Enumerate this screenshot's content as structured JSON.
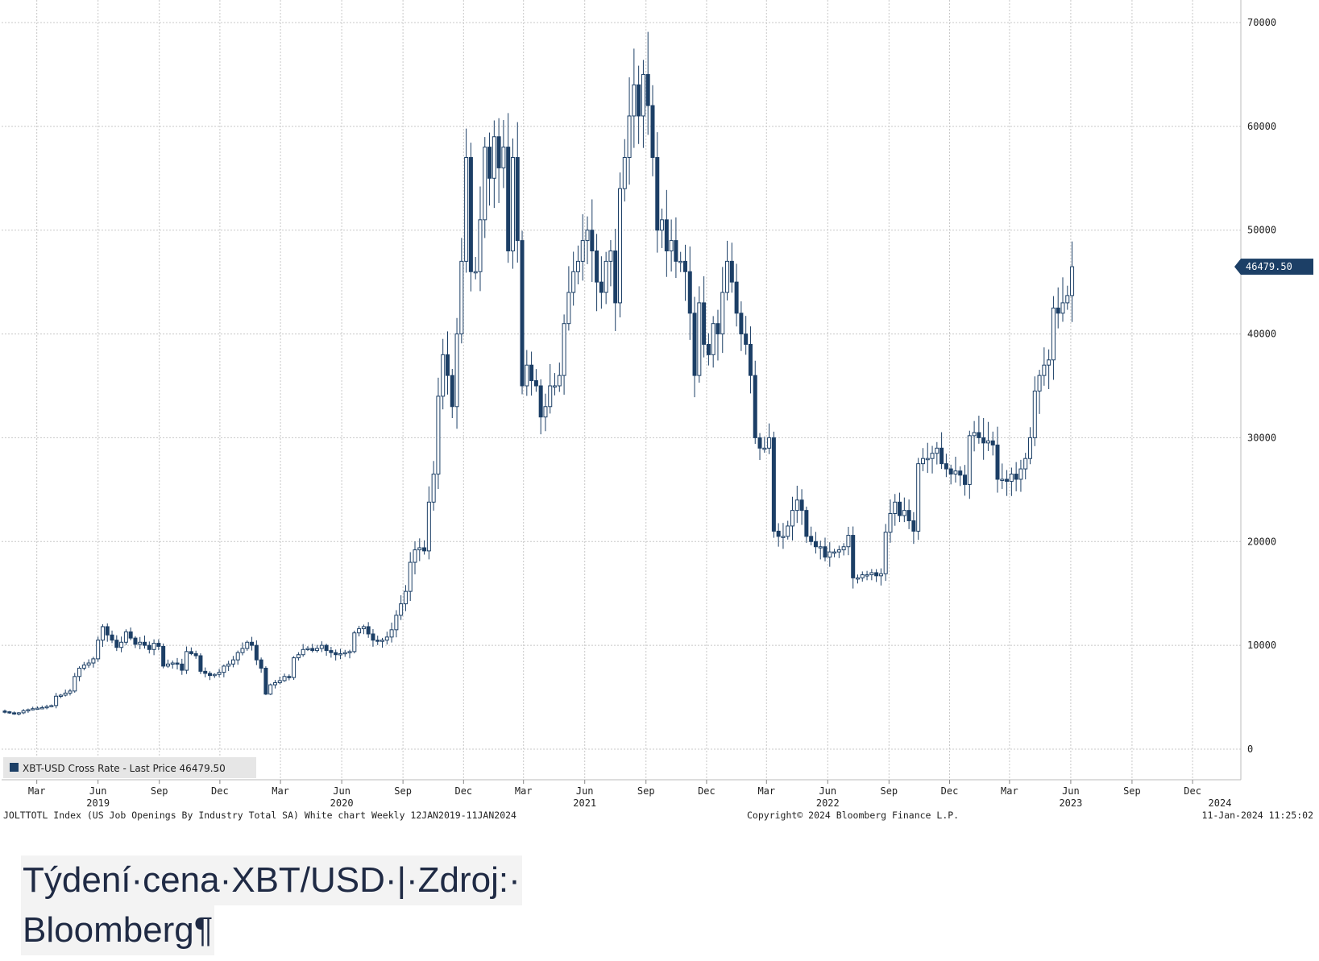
{
  "chart_data": {
    "type": "candlestick",
    "y_ticks": [
      "0",
      "10000",
      "20000",
      "30000",
      "40000",
      "50000",
      "60000",
      "70000"
    ],
    "ylim": [
      0,
      70000
    ],
    "grid": true,
    "x_month_ticks": [
      {
        "label": "Mar",
        "date": "2019-03-01"
      },
      {
        "label": "Jun",
        "date": "2019-06-01"
      },
      {
        "label": "Sep",
        "date": "2019-09-01"
      },
      {
        "label": "Dec",
        "date": "2019-12-01"
      },
      {
        "label": "Mar",
        "date": "2020-03-01"
      },
      {
        "label": "Jun",
        "date": "2020-06-01"
      },
      {
        "label": "Sep",
        "date": "2020-09-01"
      },
      {
        "label": "Dec",
        "date": "2020-12-01"
      },
      {
        "label": "Mar",
        "date": "2021-03-01"
      },
      {
        "label": "Jun",
        "date": "2021-06-01"
      },
      {
        "label": "Sep",
        "date": "2021-09-01"
      },
      {
        "label": "Dec",
        "date": "2021-12-01"
      },
      {
        "label": "Mar",
        "date": "2022-03-01"
      },
      {
        "label": "Jun",
        "date": "2022-06-01"
      },
      {
        "label": "Sep",
        "date": "2022-09-01"
      },
      {
        "label": "Dec",
        "date": "2022-12-01"
      },
      {
        "label": "Mar",
        "date": "2023-03-01"
      },
      {
        "label": "Jun",
        "date": "2023-06-01"
      },
      {
        "label": "Sep",
        "date": "2023-09-01"
      },
      {
        "label": "Dec",
        "date": "2023-12-01"
      }
    ],
    "x_year_ticks": [
      {
        "label": "2019",
        "date": "2019-06-01"
      },
      {
        "label": "2020",
        "date": "2020-06-01"
      },
      {
        "label": "2021",
        "date": "2021-06-01"
      },
      {
        "label": "2022",
        "date": "2022-06-01"
      },
      {
        "label": "2023",
        "date": "2023-06-01"
      },
      {
        "label": "2024",
        "date": "2024-01-11"
      }
    ],
    "x_range": [
      "2019-01-12",
      "2024-01-11"
    ],
    "weekly_close": [
      3600,
      3500,
      3450,
      3500,
      3700,
      3800,
      3900,
      3950,
      4000,
      4100,
      4200,
      5100,
      5200,
      5400,
      5600,
      7000,
      7800,
      8100,
      8300,
      8700,
      10500,
      11800,
      11000,
      10500,
      9800,
      10300,
      11300,
      10700,
      10100,
      10300,
      10000,
      9600,
      10200,
      9900,
      8000,
      8200,
      8300,
      8200,
      7600,
      9400,
      9200,
      9000,
      7500,
      7300,
      7100,
      7200,
      7400,
      8000,
      8200,
      8600,
      9300,
      9700,
      10300,
      10000,
      8600,
      7800,
      5300,
      6200,
      6400,
      6600,
      7000,
      6900,
      8800,
      9100,
      9600,
      9700,
      9500,
      9700,
      10000,
      9500,
      9300,
      9100,
      9200,
      9300,
      9400,
      11200,
      11600,
      11800,
      11100,
      10500,
      10400,
      10500,
      10800,
      11500,
      12900,
      14000,
      15200,
      18000,
      19200,
      19400,
      19100,
      23800,
      26500,
      34000,
      38000,
      36000,
      33000,
      40000,
      47000,
      57000,
      46000,
      46000,
      51000,
      58000,
      55000,
      59000,
      56000,
      58000,
      48000,
      57000,
      49000,
      35000,
      37000,
      35500,
      35000,
      32000,
      33000,
      35000,
      35000,
      36000,
      41000,
      44000,
      46000,
      47000,
      49000,
      50000,
      48000,
      45000,
      44000,
      47000,
      48000,
      43000,
      54000,
      57000,
      61000,
      64000,
      61000,
      65000,
      62000,
      57000,
      50000,
      51000,
      48000,
      49000,
      47000,
      47000,
      46000,
      42000,
      36000,
      43000,
      39000,
      38000,
      41000,
      40000,
      44000,
      47000,
      45000,
      42000,
      40000,
      39000,
      36000,
      30000,
      29000,
      29000,
      30000,
      21000,
      20500,
      20500,
      21500,
      23000,
      24000,
      23000,
      20500,
      20000,
      19500,
      19500,
      18500,
      19000,
      19000,
      19200,
      19500,
      20600,
      16500,
      16500,
      16800,
      16800,
      17000,
      16700,
      16900,
      20900,
      22700,
      23800,
      22500,
      23000,
      22000,
      21000,
      27500,
      28000,
      28000,
      28500,
      29000,
      27500,
      27000,
      26500,
      26800,
      26400,
      25500,
      30200,
      30500,
      30000,
      29500,
      29700,
      29300,
      26000,
      26000,
      25800,
      26500,
      26000,
      27000,
      28000,
      30000,
      34500,
      36000,
      37000,
      37500,
      42500,
      42000,
      43000,
      43700,
      46479.5
    ],
    "last_price_label": "46479.50",
    "legend": {
      "swatch_color": "#1c3f66",
      "label": "XBT-USD Cross Rate - Last Price 46479.50"
    },
    "footer_left": "JOLTTOTL Index (US Job Openings By Industry Total SA) White chart  Weekly 12JAN2019-11JAN2024",
    "footer_center": "Copyright© 2024 Bloomberg Finance L.P.",
    "footer_right": "11-Jan-2024 11:25:02"
  },
  "colors": {
    "candle": "#1c3f66",
    "grid": "#c8c8c8",
    "price_tag": "#1c3f66",
    "legend_bg": "#e6e6e6"
  },
  "caption": {
    "line1": "Týdení·cena·XBT/USD·|·Zdroj:·",
    "line2": "Bloomberg¶"
  }
}
